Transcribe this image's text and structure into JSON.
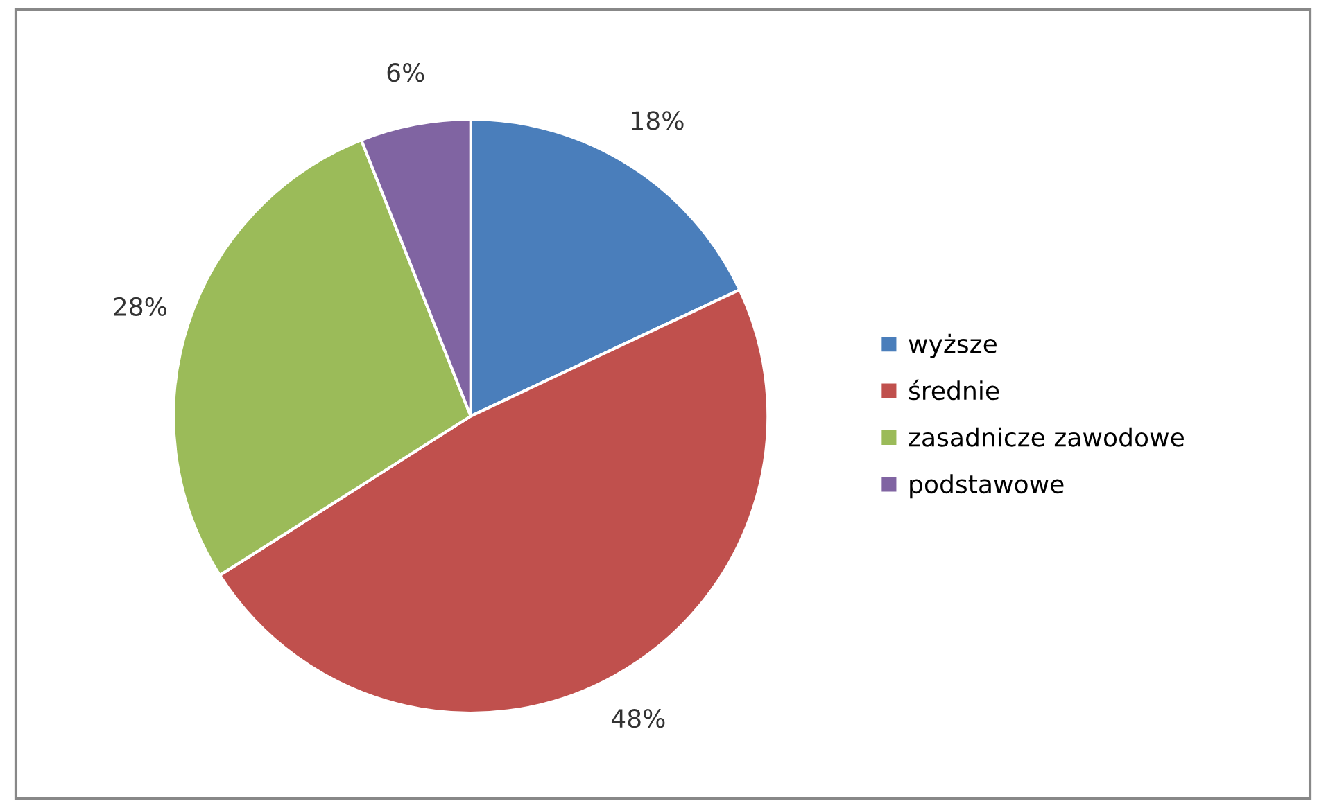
{
  "chart_data": {
    "type": "pie",
    "categories": [
      "wyższe",
      "średnie",
      "zasadnicze zawodowe",
      "podstawowe"
    ],
    "values": [
      18,
      48,
      28,
      6
    ],
    "colors": [
      "#4a7ebb",
      "#c0504d",
      "#9bbb59",
      "#8064a2"
    ],
    "value_labels": [
      "18%",
      "48%",
      "28%",
      "6%"
    ],
    "legend": "right"
  }
}
